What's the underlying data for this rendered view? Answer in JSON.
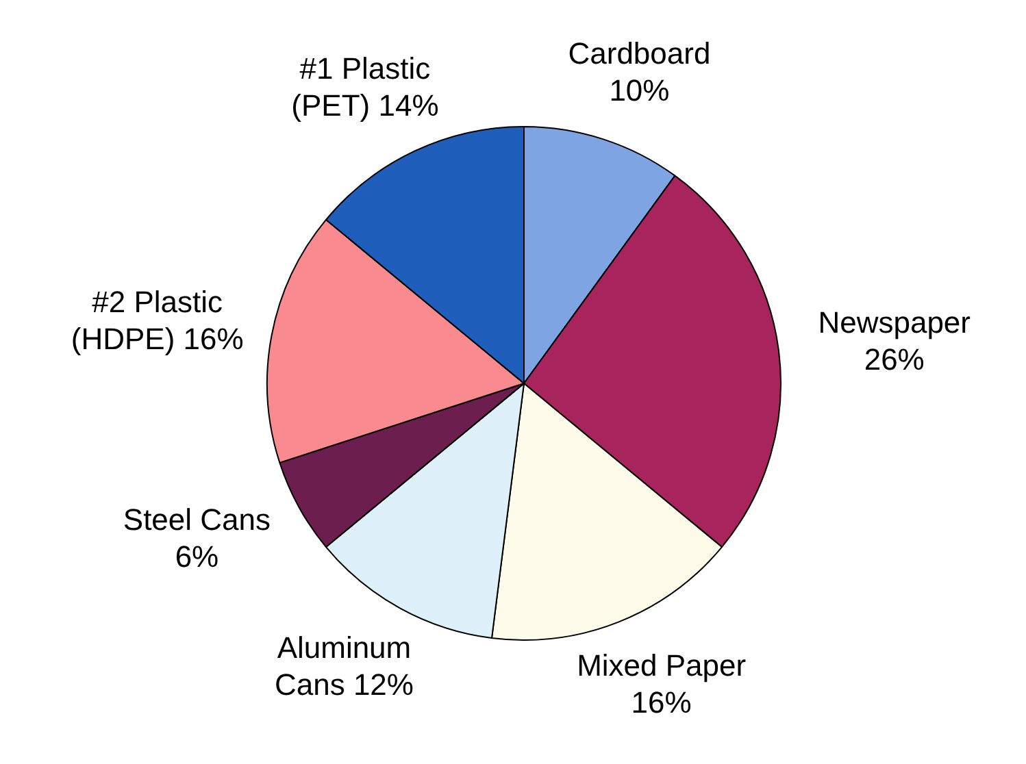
{
  "chart_data": {
    "type": "pie",
    "categories": [
      "Cardboard",
      "Newspaper",
      "Mixed Paper",
      "Aluminum Cans",
      "Steel Cans",
      "#2 Plastic (HDPE)",
      "#1 Plastic (PET)"
    ],
    "values": [
      10,
      26,
      16,
      12,
      6,
      16,
      14
    ],
    "value_labels": [
      "10%",
      "26%",
      "16%",
      "12%",
      "6%",
      "16%",
      "14%"
    ],
    "colors": [
      "#7fa4e2",
      "#a8245c",
      "#fffbea",
      "#def0fa",
      "#6c1f4f",
      "#f98a90",
      "#1f5fbb"
    ],
    "legend": false
  }
}
